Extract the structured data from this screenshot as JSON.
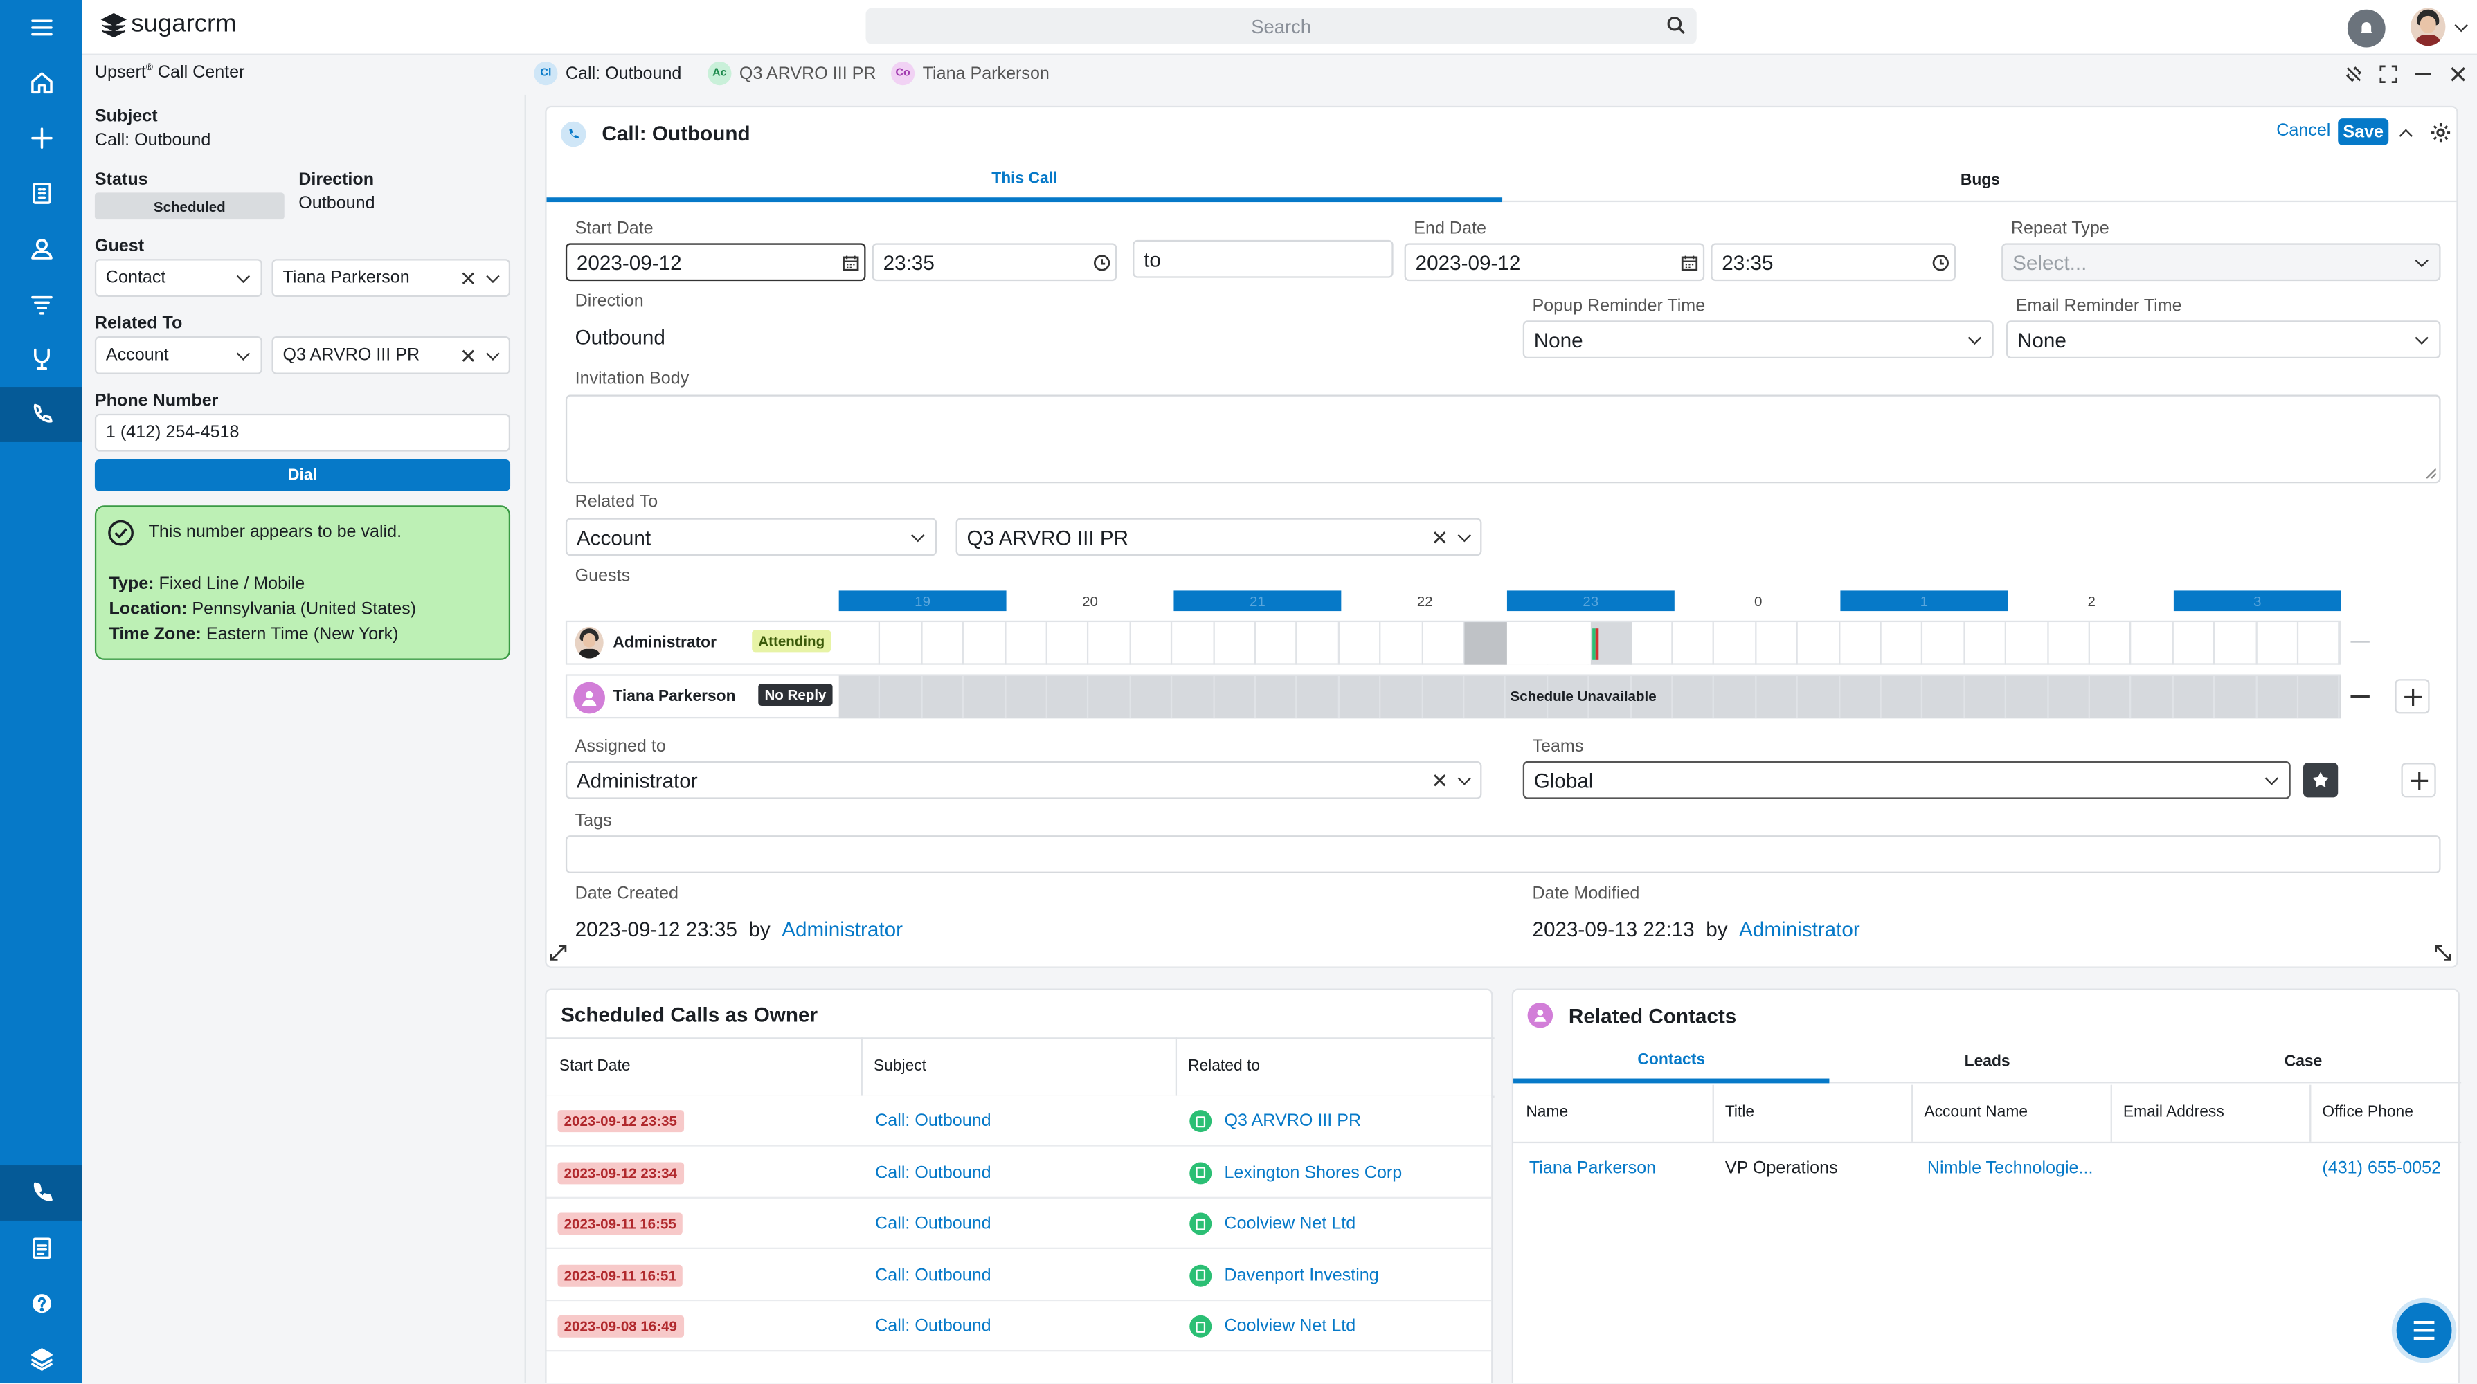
{
  "app": {
    "logo": "sugarcrm",
    "search_placeholder": "Search"
  },
  "sidebar": {
    "items": [
      "menu",
      "home",
      "create",
      "records",
      "contacts",
      "filters",
      "leads",
      "calls"
    ],
    "bottom": [
      "phone",
      "notes",
      "help",
      "layers"
    ]
  },
  "breadcrumb": {
    "panel_title": "Upsert",
    "panel_title_sup": "®",
    "panel_title_rest": " Call Center",
    "tabs": [
      {
        "badge": "Cl",
        "label": "Call: Outbound",
        "color": "#cfe6f7"
      },
      {
        "badge": "Ac",
        "label": "Q3 ARVRO III PR",
        "color": "#c9f0d9"
      },
      {
        "badge": "Co",
        "label": "Tiana Parkerson",
        "color": "#f1d2f4"
      }
    ]
  },
  "left": {
    "subject_label": "Subject",
    "subject_value": "Call: Outbound",
    "status_label": "Status",
    "status_value": "Scheduled",
    "direction_label": "Direction",
    "direction_value": "Outbound",
    "guest_label": "Guest",
    "guest_type": "Contact",
    "guest_name": "Tiana Parkerson",
    "related_label": "Related To",
    "related_type": "Account",
    "related_name": "Q3 ARVRO III PR",
    "phone_label": "Phone Number",
    "phone_value": "1 (412) 254-4518",
    "dial_label": "Dial",
    "valid_msg": "This number appears to be valid.",
    "type_label": "Type:",
    "type_value": " Fixed Line / Mobile",
    "location_label": "Location:",
    "location_value": " Pennsylvania (United States)",
    "tz_label": "Time Zone:",
    "tz_value": " Eastern Time (New York)"
  },
  "record": {
    "title": "Call: Outbound",
    "cancel": "Cancel",
    "save": "Save",
    "tabs": [
      "This Call",
      "Bugs"
    ],
    "start_date_label": "Start Date",
    "start_date": "2023-09-12",
    "start_time": "23:35",
    "to": "to",
    "end_date_label": "End Date",
    "end_date": "2023-09-12",
    "end_time": "23:35",
    "repeat_label": "Repeat Type",
    "repeat_placeholder": "Select...",
    "direction_label": "Direction",
    "direction_value": "Outbound",
    "popup_label": "Popup Reminder Time",
    "popup_value": "None",
    "email_label": "Email Reminder Time",
    "email_value": "None",
    "invitation_label": "Invitation Body",
    "related_label": "Related To",
    "related_type": "Account",
    "related_name": "Q3 ARVRO III PR",
    "guests_label": "Guests",
    "hours": [
      "19",
      "20",
      "21",
      "22",
      "23",
      "0",
      "1",
      "2",
      "3"
    ],
    "guests": [
      {
        "name": "Administrator",
        "status": "Attending"
      },
      {
        "name": "Tiana Parkerson",
        "status": "No Reply",
        "note": "Schedule Unavailable"
      }
    ],
    "assigned_label": "Assigned to",
    "assigned_value": "Administrator",
    "teams_label": "Teams",
    "teams_value": "Global",
    "tags_label": "Tags",
    "created_label": "Date Created",
    "created_value": "2023-09-12 23:35",
    "by": "by",
    "created_by": "Administrator",
    "modified_label": "Date Modified",
    "modified_value": "2023-09-13 22:13",
    "modified_by": "Administrator"
  },
  "calls": {
    "title": "Scheduled Calls as Owner",
    "headers": [
      "Start Date",
      "Subject",
      "Related to"
    ],
    "rows": [
      {
        "date": "2023-09-12 23:35",
        "subject": "Call: Outbound",
        "related": "Q3 ARVRO III PR"
      },
      {
        "date": "2023-09-12 23:34",
        "subject": "Call: Outbound",
        "related": "Lexington Shores Corp"
      },
      {
        "date": "2023-09-11 16:55",
        "subject": "Call: Outbound",
        "related": "Coolview Net Ltd"
      },
      {
        "date": "2023-09-11 16:51",
        "subject": "Call: Outbound",
        "related": "Davenport Investing"
      },
      {
        "date": "2023-09-08 16:49",
        "subject": "Call: Outbound",
        "related": "Coolview Net Ltd"
      }
    ]
  },
  "contacts": {
    "title": "Related Contacts",
    "tabs": [
      "Contacts",
      "Leads",
      "Case"
    ],
    "headers": [
      "Name",
      "Title",
      "Account Name",
      "Email Address",
      "Office Phone"
    ],
    "rows": [
      {
        "name": "Tiana Parkerson",
        "title": "VP Operations",
        "account": "Nimble Technologie...",
        "email": "",
        "phone": "(431) 655-0052"
      }
    ]
  },
  "colors": {
    "brand": "#0679c8",
    "sidebar_active": "#055a97",
    "valid_bg": "#bdf0b5",
    "valid_border": "#3a9a44",
    "badge_red": "#f7c9c9"
  }
}
